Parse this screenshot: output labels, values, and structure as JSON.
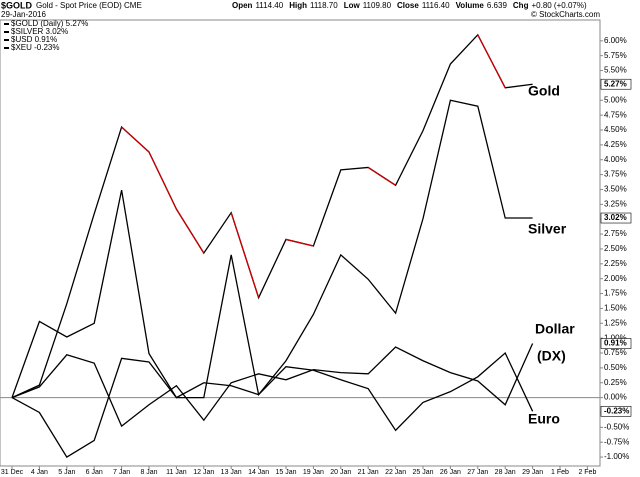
{
  "chart_data": {
    "type": "line",
    "title": "$GOLD",
    "subtitle": "Gold - Spot Price (EOD) CME",
    "date": "29-Jan-2016",
    "quote": [
      {
        "label": "Open",
        "value": "1114.40"
      },
      {
        "label": "High",
        "value": "1118.70"
      },
      {
        "label": "Low",
        "value": "1109.80"
      },
      {
        "label": "Close",
        "value": "1116.40"
      },
      {
        "label": "Volume",
        "value": "6.639"
      },
      {
        "label": "Chg",
        "value": "+0.80 (+0.07%)"
      }
    ],
    "source": "© StockCharts.com",
    "categories": [
      "31 Dec",
      "4 Jan",
      "5 Jan",
      "6 Jan",
      "7 Jan",
      "8 Jan",
      "11 Jan",
      "12 Jan",
      "13 Jan",
      "14 Jan",
      "15 Jan",
      "19 Jan",
      "20 Jan",
      "21 Jan",
      "22 Jan",
      "25 Jan",
      "26 Jan",
      "27 Jan",
      "28 Jan",
      "29 Jan",
      "1 Feb",
      "2 Feb"
    ],
    "series": [
      {
        "name": "$GOLD (Daily) 5.27%",
        "color": "#000000",
        "down_color": "#cc0000",
        "values": [
          0,
          0.21,
          1.58,
          3.09,
          4.55,
          4.13,
          3.17,
          2.43,
          3.11,
          1.68,
          2.66,
          2.55,
          3.83,
          3.87,
          3.57,
          4.49,
          5.61,
          6.1,
          5.21,
          5.27,
          null,
          null
        ],
        "value_labels": [
          null,
          null,
          null,
          null,
          null,
          null,
          null,
          null,
          null,
          null,
          null,
          null,
          null,
          null,
          null,
          null,
          null,
          null,
          null,
          "5.27%",
          null,
          null
        ]
      },
      {
        "name": "$SILVER 3.02%",
        "color": "#000000",
        "values": [
          0,
          1.28,
          1.02,
          1.25,
          3.49,
          0.74,
          0,
          0,
          2.4,
          0.05,
          0.62,
          1.4,
          2.4,
          1.99,
          1.42,
          3.01,
          5.0,
          4.9,
          3.02,
          3.02,
          null,
          null
        ],
        "value_labels": [
          null,
          null,
          null,
          null,
          null,
          null,
          null,
          null,
          null,
          null,
          null,
          null,
          null,
          null,
          null,
          null,
          null,
          null,
          null,
          "3.02%",
          null,
          null
        ]
      },
      {
        "name": "$USD 0.91%",
        "color": "#000000",
        "values": [
          0,
          0.18,
          0.72,
          0.58,
          -0.48,
          -0.12,
          0.2,
          -0.38,
          0.25,
          0.4,
          0.3,
          0.47,
          0.42,
          0.4,
          0.85,
          0.62,
          0.42,
          0.28,
          -0.12,
          0.91,
          null,
          null
        ],
        "value_labels": [
          null,
          null,
          null,
          null,
          null,
          null,
          null,
          null,
          null,
          null,
          null,
          null,
          null,
          null,
          null,
          null,
          null,
          null,
          null,
          "0.91%",
          null,
          null
        ]
      },
      {
        "name": "$XEU -0.23%",
        "color": "#000000",
        "values": [
          0,
          -0.25,
          -1.0,
          -0.72,
          0.66,
          0.6,
          0,
          0.25,
          0.2,
          0.05,
          0.52,
          0.46,
          0.3,
          0.15,
          -0.55,
          -0.08,
          0.1,
          0.35,
          0.75,
          -0.23,
          null,
          null
        ],
        "value_labels": [
          null,
          null,
          null,
          null,
          null,
          null,
          null,
          null,
          null,
          null,
          null,
          null,
          null,
          null,
          null,
          null,
          null,
          null,
          null,
          "-0.23%",
          null,
          null
        ]
      }
    ],
    "annotations": [
      "Gold",
      "Silver",
      "Dollar",
      "(DX)",
      "Euro"
    ],
    "ylim": [
      -1.15,
      6.35
    ],
    "yticks": [
      {
        "value": -1,
        "label": "-1.00%"
      },
      {
        "value": -0.75,
        "label": "-0.75%"
      },
      {
        "value": -0.5,
        "label": "-0.50%"
      },
      {
        "value": -0.25,
        "label": "-0.25%"
      },
      {
        "value": 0,
        "label": "0.00%"
      },
      {
        "value": 0.25,
        "label": "0.25%"
      },
      {
        "value": 0.5,
        "label": "0.50%"
      },
      {
        "value": 0.75,
        "label": "0.75%"
      },
      {
        "value": 1,
        "label": "1.00%"
      },
      {
        "value": 1.25,
        "label": "1.25%"
      },
      {
        "value": 1.5,
        "label": "1.50%"
      },
      {
        "value": 1.75,
        "label": "1.75%"
      },
      {
        "value": 2,
        "label": "2.00%"
      },
      {
        "value": 2.25,
        "label": "2.25%"
      },
      {
        "value": 2.5,
        "label": "2.50%"
      },
      {
        "value": 2.75,
        "label": "2.75%"
      },
      {
        "value": 3,
        "label": "3.00%"
      },
      {
        "value": 3.25,
        "label": "3.25%"
      },
      {
        "value": 3.5,
        "label": "3.50%"
      },
      {
        "value": 3.75,
        "label": "3.75%"
      },
      {
        "value": 4,
        "label": "4.00%"
      },
      {
        "value": 4.25,
        "label": "4.25%"
      },
      {
        "value": 4.5,
        "label": "4.50%"
      },
      {
        "value": 4.75,
        "label": "4.75%"
      },
      {
        "value": 5,
        "label": "5.00%"
      },
      {
        "value": 5.25,
        "label": "5.25%"
      },
      {
        "value": 5.5,
        "label": "5.50%"
      },
      {
        "value": 5.75,
        "label": "5.75%"
      },
      {
        "value": 6,
        "label": "6.00%"
      }
    ],
    "zero_line": true
  }
}
